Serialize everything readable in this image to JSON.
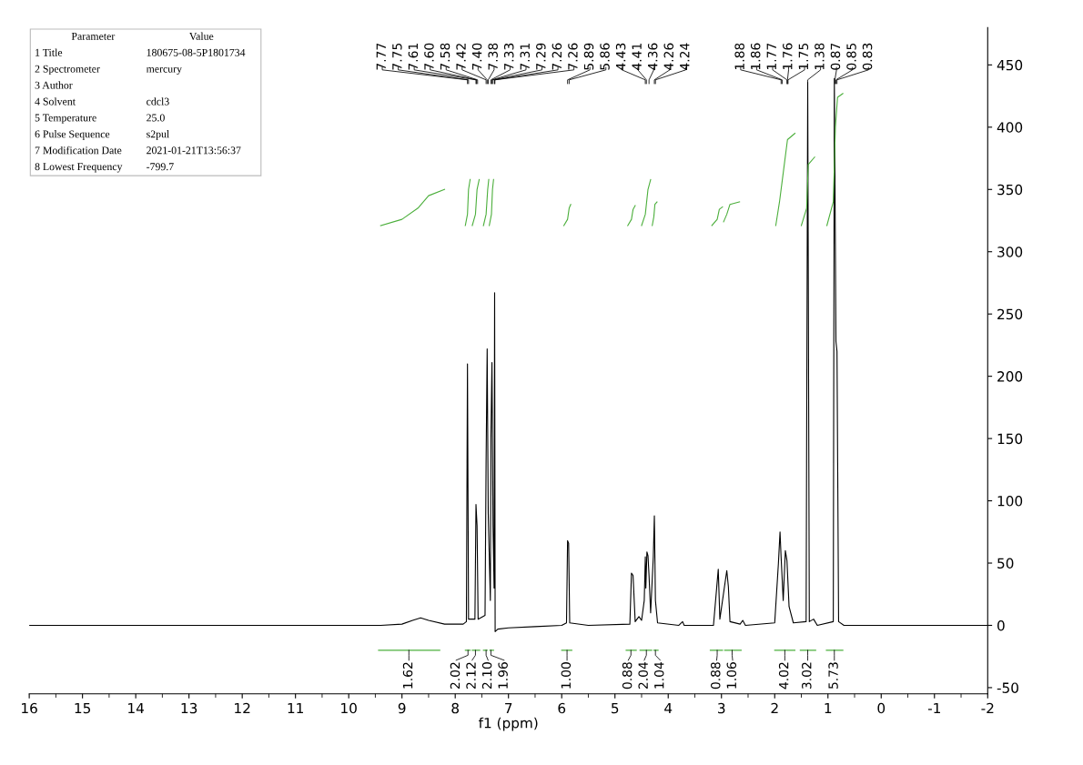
{
  "chart_data": {
    "type": "line",
    "xlabel": "f1 (ppm)",
    "xlim": [
      16,
      -2
    ],
    "xticks": [
      16,
      15,
      14,
      13,
      12,
      11,
      10,
      9,
      8,
      7,
      6,
      5,
      4,
      3,
      2,
      1,
      0,
      {
        "value": -1,
        "label": "-1"
      },
      {
        "value": -2,
        "label": "-2"
      }
    ],
    "ylim": [
      -55,
      480
    ],
    "yticks": [
      {
        "value": -50,
        "label": "-50"
      },
      0,
      50,
      100,
      150,
      200,
      250,
      300,
      350,
      400,
      450
    ],
    "grid": false,
    "legend": false,
    "series": [
      {
        "color": "#000000",
        "x": [
          16,
          13.2,
          9.4,
          9.0,
          8.8,
          8.65,
          8.5,
          8.2,
          7.85,
          7.79,
          7.77,
          7.75,
          7.63,
          7.61,
          7.59,
          7.57,
          7.44,
          7.42,
          7.4,
          7.38,
          7.34,
          7.33,
          7.31,
          7.29,
          7.27,
          7.26,
          7.25,
          7.2,
          7.0,
          6.5,
          6.0,
          5.91,
          5.89,
          5.87,
          5.85,
          5.5,
          4.72,
          4.69,
          4.66,
          4.62,
          4.55,
          4.5,
          4.45,
          4.43,
          4.42,
          4.4,
          4.38,
          4.36,
          4.33,
          4.28,
          4.26,
          4.24,
          4.2,
          3.8,
          3.73,
          3.7,
          3.15,
          3.09,
          3.06,
          3.03,
          2.9,
          2.87,
          2.84,
          2.65,
          2.6,
          2.55,
          2.0,
          1.93,
          1.9,
          1.88,
          1.84,
          1.8,
          1.77,
          1.73,
          1.65,
          1.41,
          1.38,
          1.35,
          1.27,
          1.2,
          0.9,
          0.88,
          0.85,
          0.83,
          0.8,
          0.7,
          -2
        ],
        "values": [
          0,
          0,
          0,
          1,
          4,
          6,
          4,
          1,
          1,
          3,
          210,
          5,
          5,
          97,
          80,
          5,
          8,
          133,
          222,
          90,
          20,
          150,
          211,
          80,
          30,
          267,
          -5,
          -3,
          -2,
          -1,
          0,
          2,
          68,
          66,
          2,
          0,
          1,
          42,
          40,
          3,
          7,
          4,
          20,
          55,
          30,
          59,
          56,
          40,
          10,
          55,
          88,
          20,
          2,
          0,
          3,
          0,
          0,
          30,
          45,
          5,
          44,
          31,
          3,
          1,
          4,
          0,
          2,
          50,
          75,
          55,
          20,
          60,
          52,
          15,
          2,
          3,
          436,
          3,
          5,
          0,
          3,
          439,
          228,
          220,
          3,
          0,
          0
        ]
      },
      {
        "color": "#4caf3c",
        "x": [
          9.4,
          9.0,
          8.7,
          8.5,
          8.2
        ],
        "values": [
          321,
          326,
          335,
          345,
          350
        ]
      },
      {
        "color": "#4caf3c",
        "x": [
          7.81,
          7.77,
          7.75,
          7.72
        ],
        "values": [
          321,
          330,
          350,
          358
        ]
      },
      {
        "color": "#4caf3c",
        "x": [
          7.68,
          7.62,
          7.59,
          7.55
        ],
        "values": [
          321,
          330,
          350,
          358
        ]
      },
      {
        "color": "#4caf3c",
        "x": [
          7.47,
          7.42,
          7.39,
          7.37
        ],
        "values": [
          321,
          330,
          350,
          358
        ]
      },
      {
        "color": "#4caf3c",
        "x": [
          7.36,
          7.32,
          7.3,
          7.28
        ],
        "values": [
          321,
          330,
          350,
          358
        ]
      },
      {
        "color": "#4caf3c",
        "x": [
          5.96,
          5.89,
          5.86,
          5.83
        ],
        "values": [
          321,
          326,
          335,
          338
        ]
      },
      {
        "color": "#4caf3c",
        "x": [
          4.76,
          4.69,
          4.66,
          4.62
        ],
        "values": [
          321,
          326,
          334,
          337
        ]
      },
      {
        "color": "#4caf3c",
        "x": [
          4.5,
          4.43,
          4.38,
          4.33
        ],
        "values": [
          321,
          330,
          350,
          358
        ]
      },
      {
        "color": "#4caf3c",
        "x": [
          4.3,
          4.27,
          4.25,
          4.21
        ],
        "values": [
          321,
          328,
          338,
          340
        ]
      },
      {
        "color": "#4caf3c",
        "x": [
          3.18,
          3.08,
          3.04,
          2.98
        ],
        "values": [
          321,
          326,
          334,
          336
        ]
      },
      {
        "color": "#4caf3c",
        "x": [
          2.96,
          2.9,
          2.84,
          2.66
        ],
        "values": [
          324,
          330,
          338,
          340
        ]
      },
      {
        "color": "#4caf3c",
        "x": [
          1.98,
          1.91,
          1.85,
          1.76,
          1.62
        ],
        "values": [
          321,
          340,
          360,
          390,
          395
        ]
      },
      {
        "color": "#4caf3c",
        "x": [
          1.5,
          1.4,
          1.37,
          1.25
        ],
        "values": [
          321,
          335,
          370,
          376
        ]
      },
      {
        "color": "#4caf3c",
        "x": [
          1.02,
          0.9,
          0.86,
          0.82,
          0.72
        ],
        "values": [
          321,
          340,
          400,
          424,
          427
        ]
      },
      {
        "color": "#4caf3c",
        "x": [
          9.44,
          8.29
        ],
        "values": [
          -20,
          -20
        ]
      },
      {
        "color": "#4caf3c",
        "x": [
          7.81,
          7.72
        ],
        "values": [
          -20,
          -20
        ]
      },
      {
        "color": "#4caf3c",
        "x": [
          7.68,
          7.54
        ],
        "values": [
          -20,
          -20
        ]
      },
      {
        "color": "#4caf3c",
        "x": [
          7.47,
          7.4
        ],
        "values": [
          -20,
          -20
        ]
      },
      {
        "color": "#4caf3c",
        "x": [
          7.35,
          7.28
        ],
        "values": [
          -20,
          -20
        ]
      },
      {
        "color": "#4caf3c",
        "x": [
          6.0,
          5.81
        ],
        "values": [
          -20,
          -20
        ]
      },
      {
        "color": "#4caf3c",
        "x": [
          4.79,
          4.6
        ],
        "values": [
          -20,
          -20
        ]
      },
      {
        "color": "#4caf3c",
        "x": [
          4.53,
          4.31
        ],
        "values": [
          -20,
          -20
        ]
      },
      {
        "color": "#4caf3c",
        "x": [
          4.27,
          4.19
        ],
        "values": [
          -20,
          -20
        ]
      },
      {
        "color": "#4caf3c",
        "x": [
          3.21,
          2.98
        ],
        "values": [
          -20,
          -20
        ]
      },
      {
        "color": "#4caf3c",
        "x": [
          2.94,
          2.63
        ],
        "values": [
          -20,
          -20
        ]
      },
      {
        "color": "#4caf3c",
        "x": [
          2.0,
          1.62
        ],
        "values": [
          -20,
          -20
        ]
      },
      {
        "color": "#4caf3c",
        "x": [
          1.52,
          1.23
        ],
        "values": [
          -20,
          -20
        ]
      },
      {
        "color": "#4caf3c",
        "x": [
          1.03,
          0.72
        ],
        "values": [
          -20,
          -20
        ]
      }
    ],
    "annotations": [
      "Parameter\tValue",
      "1 Title\t180675-08-5P1801734",
      "2 Spectrometer\tmercury",
      "3 Author",
      "4 Solvent\tcdcl3",
      "5 Temperature\t25.0",
      "6 Pulse Sequence\ts2pul",
      "7 Modification Date\t2021-01-21T13:56:37",
      "8 Lowest Frequency\t-799.7",
      {
        "text": "7.77",
        "x": 7.77
      },
      {
        "text": "7.75",
        "x": 7.75
      },
      {
        "text": "7.61",
        "x": 7.61
      },
      {
        "text": "7.60",
        "x": 7.6
      },
      {
        "text": "7.58",
        "x": 7.58
      },
      {
        "text": "7.42",
        "x": 7.42
      },
      {
        "text": "7.40",
        "x": 7.4
      },
      {
        "text": "7.38",
        "x": 7.38
      },
      {
        "text": "7.33",
        "x": 7.33
      },
      {
        "text": "7.31",
        "x": 7.31
      },
      {
        "text": "7.29",
        "x": 7.29
      },
      {
        "text": "7.26",
        "x": 7.26
      },
      {
        "text": "7.26",
        "x": 7.255
      },
      {
        "text": "5.89",
        "x": 5.89
      },
      {
        "text": "5.86",
        "x": 5.86
      },
      {
        "text": "4.43",
        "x": 4.43
      },
      {
        "text": "4.41",
        "x": 4.41
      },
      {
        "text": "4.36",
        "x": 4.36
      },
      {
        "text": "4.26",
        "x": 4.26
      },
      {
        "text": "4.24",
        "x": 4.24
      },
      {
        "text": "1.88",
        "x": 1.88
      },
      {
        "text": "1.86",
        "x": 1.86
      },
      {
        "text": "1.77",
        "x": 1.77
      },
      {
        "text": "1.76",
        "x": 1.76
      },
      {
        "text": "1.75",
        "x": 1.75
      },
      {
        "text": "1.38",
        "x": 1.38
      },
      {
        "text": "0.87",
        "x": 0.87
      },
      {
        "text": "0.85",
        "x": 0.85
      },
      {
        "text": "0.83",
        "x": 0.83
      },
      {
        "text": "1.62",
        "x": 8.87,
        "y": -20
      },
      {
        "text": "2.02",
        "x": 7.76,
        "y": -20
      },
      {
        "text": "2.12",
        "x": 7.62,
        "y": -20
      },
      {
        "text": "2.10",
        "x": 7.42,
        "y": -20
      },
      {
        "text": "1.96",
        "x": 7.33,
        "y": -20
      },
      {
        "text": "1.00",
        "x": 5.9,
        "y": -20
      },
      {
        "text": "0.88",
        "x": 4.7,
        "y": -20
      },
      {
        "text": "2.04",
        "x": 4.41,
        "y": -20
      },
      {
        "text": "1.04",
        "x": 4.24,
        "y": -20
      },
      {
        "text": "0.88",
        "x": 3.08,
        "y": -20
      },
      {
        "text": "1.06",
        "x": 2.8,
        "y": -20
      },
      {
        "text": "4.02",
        "x": 1.81,
        "y": -20
      },
      {
        "text": "3.02",
        "x": 1.38,
        "y": -20
      },
      {
        "text": "5.73",
        "x": 0.88,
        "y": -20
      }
    ]
  }
}
